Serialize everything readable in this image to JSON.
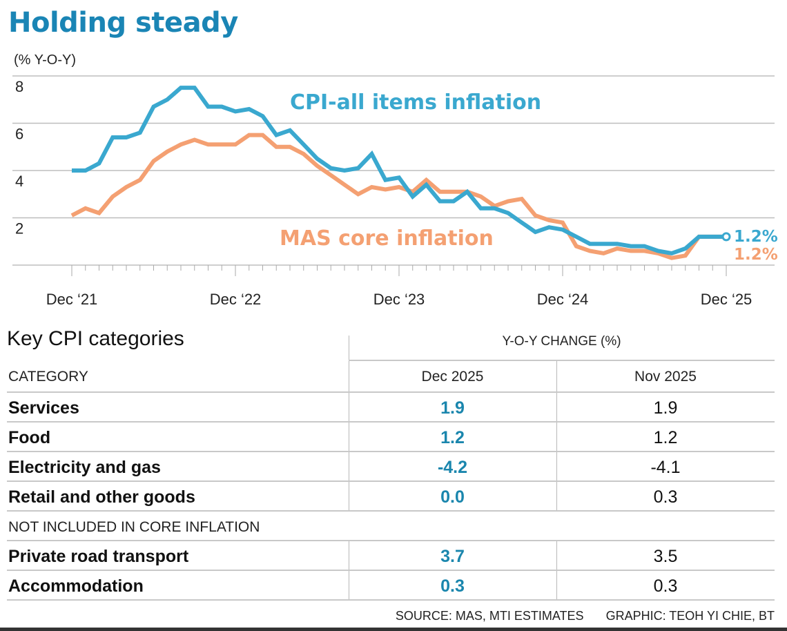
{
  "title": "Holding steady",
  "colors": {
    "title": "#1a85b5",
    "cpi": "#3aa8cf",
    "core": "#f4a072",
    "table_value": "#1a86ad"
  },
  "chart_data": {
    "type": "line",
    "title": "Holding steady",
    "ylabel": "(% Y-O-Y)",
    "ylim": [
      0,
      8
    ],
    "yticks": [
      8,
      6,
      4,
      2
    ],
    "ytick_labels": [
      "8",
      "6",
      "4",
      "2"
    ],
    "x_start": "Dec 2021",
    "x_end": "Dec 2025",
    "x_frequency": "monthly",
    "xtick_labels": [
      "Dec ‘21",
      "Dec ‘22",
      "Dec ‘23",
      "Dec ‘24",
      "Dec ‘25"
    ],
    "grid": true,
    "series": [
      {
        "name": "CPI-all items inflation",
        "color": "#3aa8cf",
        "values": [
          4.0,
          4.0,
          4.3,
          5.4,
          5.4,
          5.6,
          6.7,
          7.0,
          7.5,
          7.5,
          6.7,
          6.7,
          6.5,
          6.6,
          6.3,
          5.5,
          5.7,
          5.1,
          4.5,
          4.1,
          4.0,
          4.1,
          4.7,
          3.6,
          3.7,
          2.9,
          3.4,
          2.7,
          2.7,
          3.1,
          2.4,
          2.4,
          2.2,
          1.8,
          1.4,
          1.6,
          1.5,
          1.2,
          0.9,
          0.9,
          0.9,
          0.8,
          0.8,
          0.6,
          0.5,
          0.7,
          1.2,
          1.2,
          1.2
        ],
        "end_label": "1.2%"
      },
      {
        "name": "MAS core inflation",
        "color": "#f4a072",
        "values": [
          2.1,
          2.4,
          2.2,
          2.9,
          3.3,
          3.6,
          4.4,
          4.8,
          5.1,
          5.3,
          5.1,
          5.1,
          5.1,
          5.5,
          5.5,
          5.0,
          5.0,
          4.7,
          4.2,
          3.8,
          3.4,
          3.0,
          3.3,
          3.2,
          3.3,
          3.1,
          3.6,
          3.1,
          3.1,
          3.1,
          2.9,
          2.5,
          2.7,
          2.8,
          2.1,
          1.9,
          1.8,
          0.8,
          0.6,
          0.5,
          0.7,
          0.6,
          0.6,
          0.5,
          0.3,
          0.4,
          1.2,
          1.2,
          1.2
        ],
        "end_label": "1.2%"
      }
    ]
  },
  "table": {
    "title": "Key CPI categories",
    "group_header": "Y-O-Y CHANGE (%)",
    "category_header": "CATEGORY",
    "columns": [
      "Dec 2025",
      "Nov 2025"
    ],
    "rows": [
      {
        "category": "Services",
        "dec": "1.9",
        "nov": "1.9"
      },
      {
        "category": "Food",
        "dec": "1.2",
        "nov": "1.2"
      },
      {
        "category": "Electricity and gas",
        "dec": "-4.2",
        "nov": "-4.1"
      },
      {
        "category": "Retail and other goods",
        "dec": "0.0",
        "nov": "0.3"
      }
    ],
    "section_label": "NOT INCLUDED IN CORE INFLATION",
    "rows2": [
      {
        "category": "Private road transport",
        "dec": "3.7",
        "nov": "3.5"
      },
      {
        "category": "Accommodation",
        "dec": "0.3",
        "nov": "0.3"
      }
    ]
  },
  "footer": {
    "source": "SOURCE: MAS, MTI ESTIMATES",
    "graphic": "GRAPHIC: TEOH YI CHIE, BT"
  }
}
